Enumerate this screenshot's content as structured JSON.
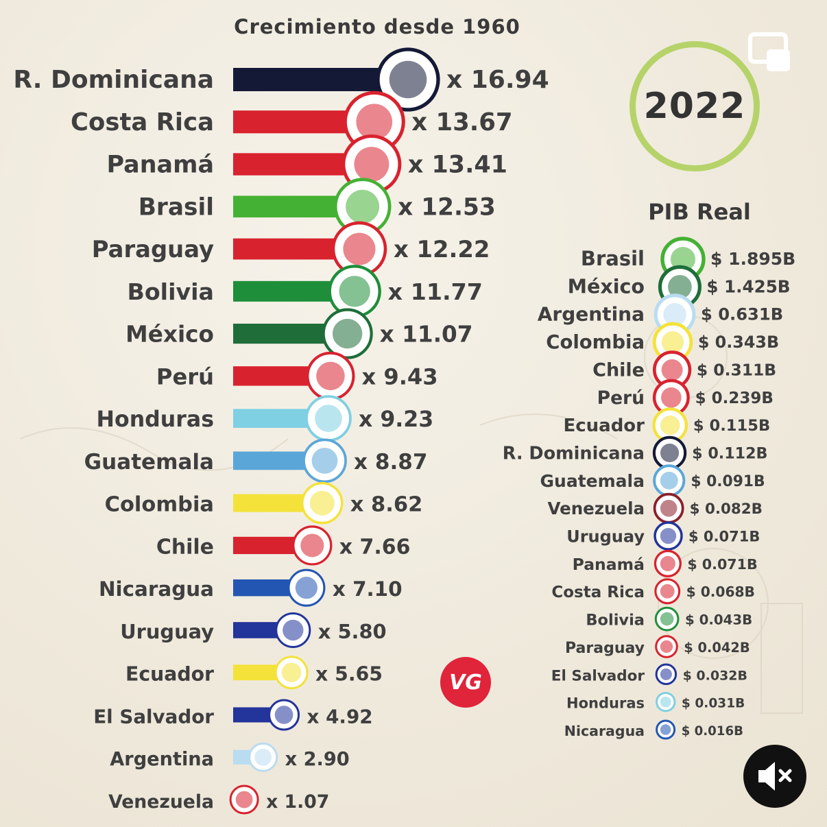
{
  "title": "Crecimiento desde 1960",
  "year": "2022",
  "pib_title": "PIB Real",
  "badge": "VG",
  "colors": {
    "background": "#f1ece1",
    "ring": "#b6d36a",
    "badge": "#e0243a",
    "text": "#3f3f3f"
  },
  "icons": [
    "picture-in-picture-icon",
    "mute-icon"
  ],
  "chart_data": [
    {
      "type": "bar",
      "title": "Crecimiento desde 1960",
      "value_prefix": "x ",
      "categories": [
        "R. Dominicana",
        "Costa Rica",
        "Panamá",
        "Brasil",
        "Paraguay",
        "Bolivia",
        "México",
        "Perú",
        "Honduras",
        "Guatemala",
        "Colombia",
        "Chile",
        "Nicaragua",
        "Uruguay",
        "Ecuador",
        "El Salvador",
        "Argentina",
        "Venezuela"
      ],
      "values": [
        16.94,
        13.67,
        13.41,
        12.53,
        12.22,
        11.77,
        11.07,
        9.43,
        9.23,
        8.87,
        8.62,
        7.66,
        7.1,
        5.8,
        5.65,
        4.92,
        2.9,
        1.07
      ],
      "labels": [
        "x 16.94",
        "x 13.67",
        "x 13.41",
        "x 12.53",
        "x 12.22",
        "x 11.77",
        "x 11.07",
        "x 9.43",
        "x 9.23",
        "x 8.87",
        "x 8.62",
        "x 7.66",
        "x 7.10",
        "x 5.80",
        "x 5.65",
        "x 4.92",
        "x 2.90",
        "x 1.07"
      ],
      "bar_colors": [
        "#141a36",
        "#d8232f",
        "#d8232f",
        "#45b134",
        "#d8232f",
        "#1f8e3a",
        "#1f6e3a",
        "#d8232f",
        "#7fd0e2",
        "#5ba6d8",
        "#f4e23a",
        "#d8232f",
        "#2356b3",
        "#23349a",
        "#f4e23a",
        "#23349a",
        "#b9dcf1",
        "#d8232f"
      ]
    },
    {
      "type": "bar",
      "title": "PIB Real",
      "categories": [
        "Brasil",
        "México",
        "Argentina",
        "Colombia",
        "Chile",
        "Perú",
        "Ecuador",
        "R. Dominicana",
        "Guatemala",
        "Venezuela",
        "Uruguay",
        "Panamá",
        "Costa Rica",
        "Bolivia",
        "Paraguay",
        "El Salvador",
        "Honduras",
        "Nicaragua"
      ],
      "values": [
        1.895,
        1.425,
        0.631,
        0.343,
        0.311,
        0.239,
        0.115,
        0.112,
        0.091,
        0.082,
        0.071,
        0.071,
        0.068,
        0.043,
        0.042,
        0.032,
        0.031,
        0.016
      ],
      "labels": [
        "$ 1.895B",
        "$ 1.425B",
        "$ 0.631B",
        "$ 0.343B",
        "$ 0.311B",
        "$ 0.239B",
        "$ 0.115B",
        "$ 0.112B",
        "$ 0.091B",
        "$ 0.082B",
        "$ 0.071B",
        "$ 0.071B",
        "$ 0.068B",
        "$ 0.043B",
        "$ 0.042B",
        "$ 0.032B",
        "$ 0.031B",
        "$ 0.016B"
      ],
      "bar_colors": [
        "#45b134",
        "#1f6e3a",
        "#b9dcf1",
        "#f4e23a",
        "#d8232f",
        "#d8232f",
        "#f4e23a",
        "#141a36",
        "#5ba6d8",
        "#8a1f2a",
        "#23349a",
        "#d8232f",
        "#d8232f",
        "#1f8e3a",
        "#d8232f",
        "#23349a",
        "#7fd0e2",
        "#2356b3"
      ]
    }
  ]
}
